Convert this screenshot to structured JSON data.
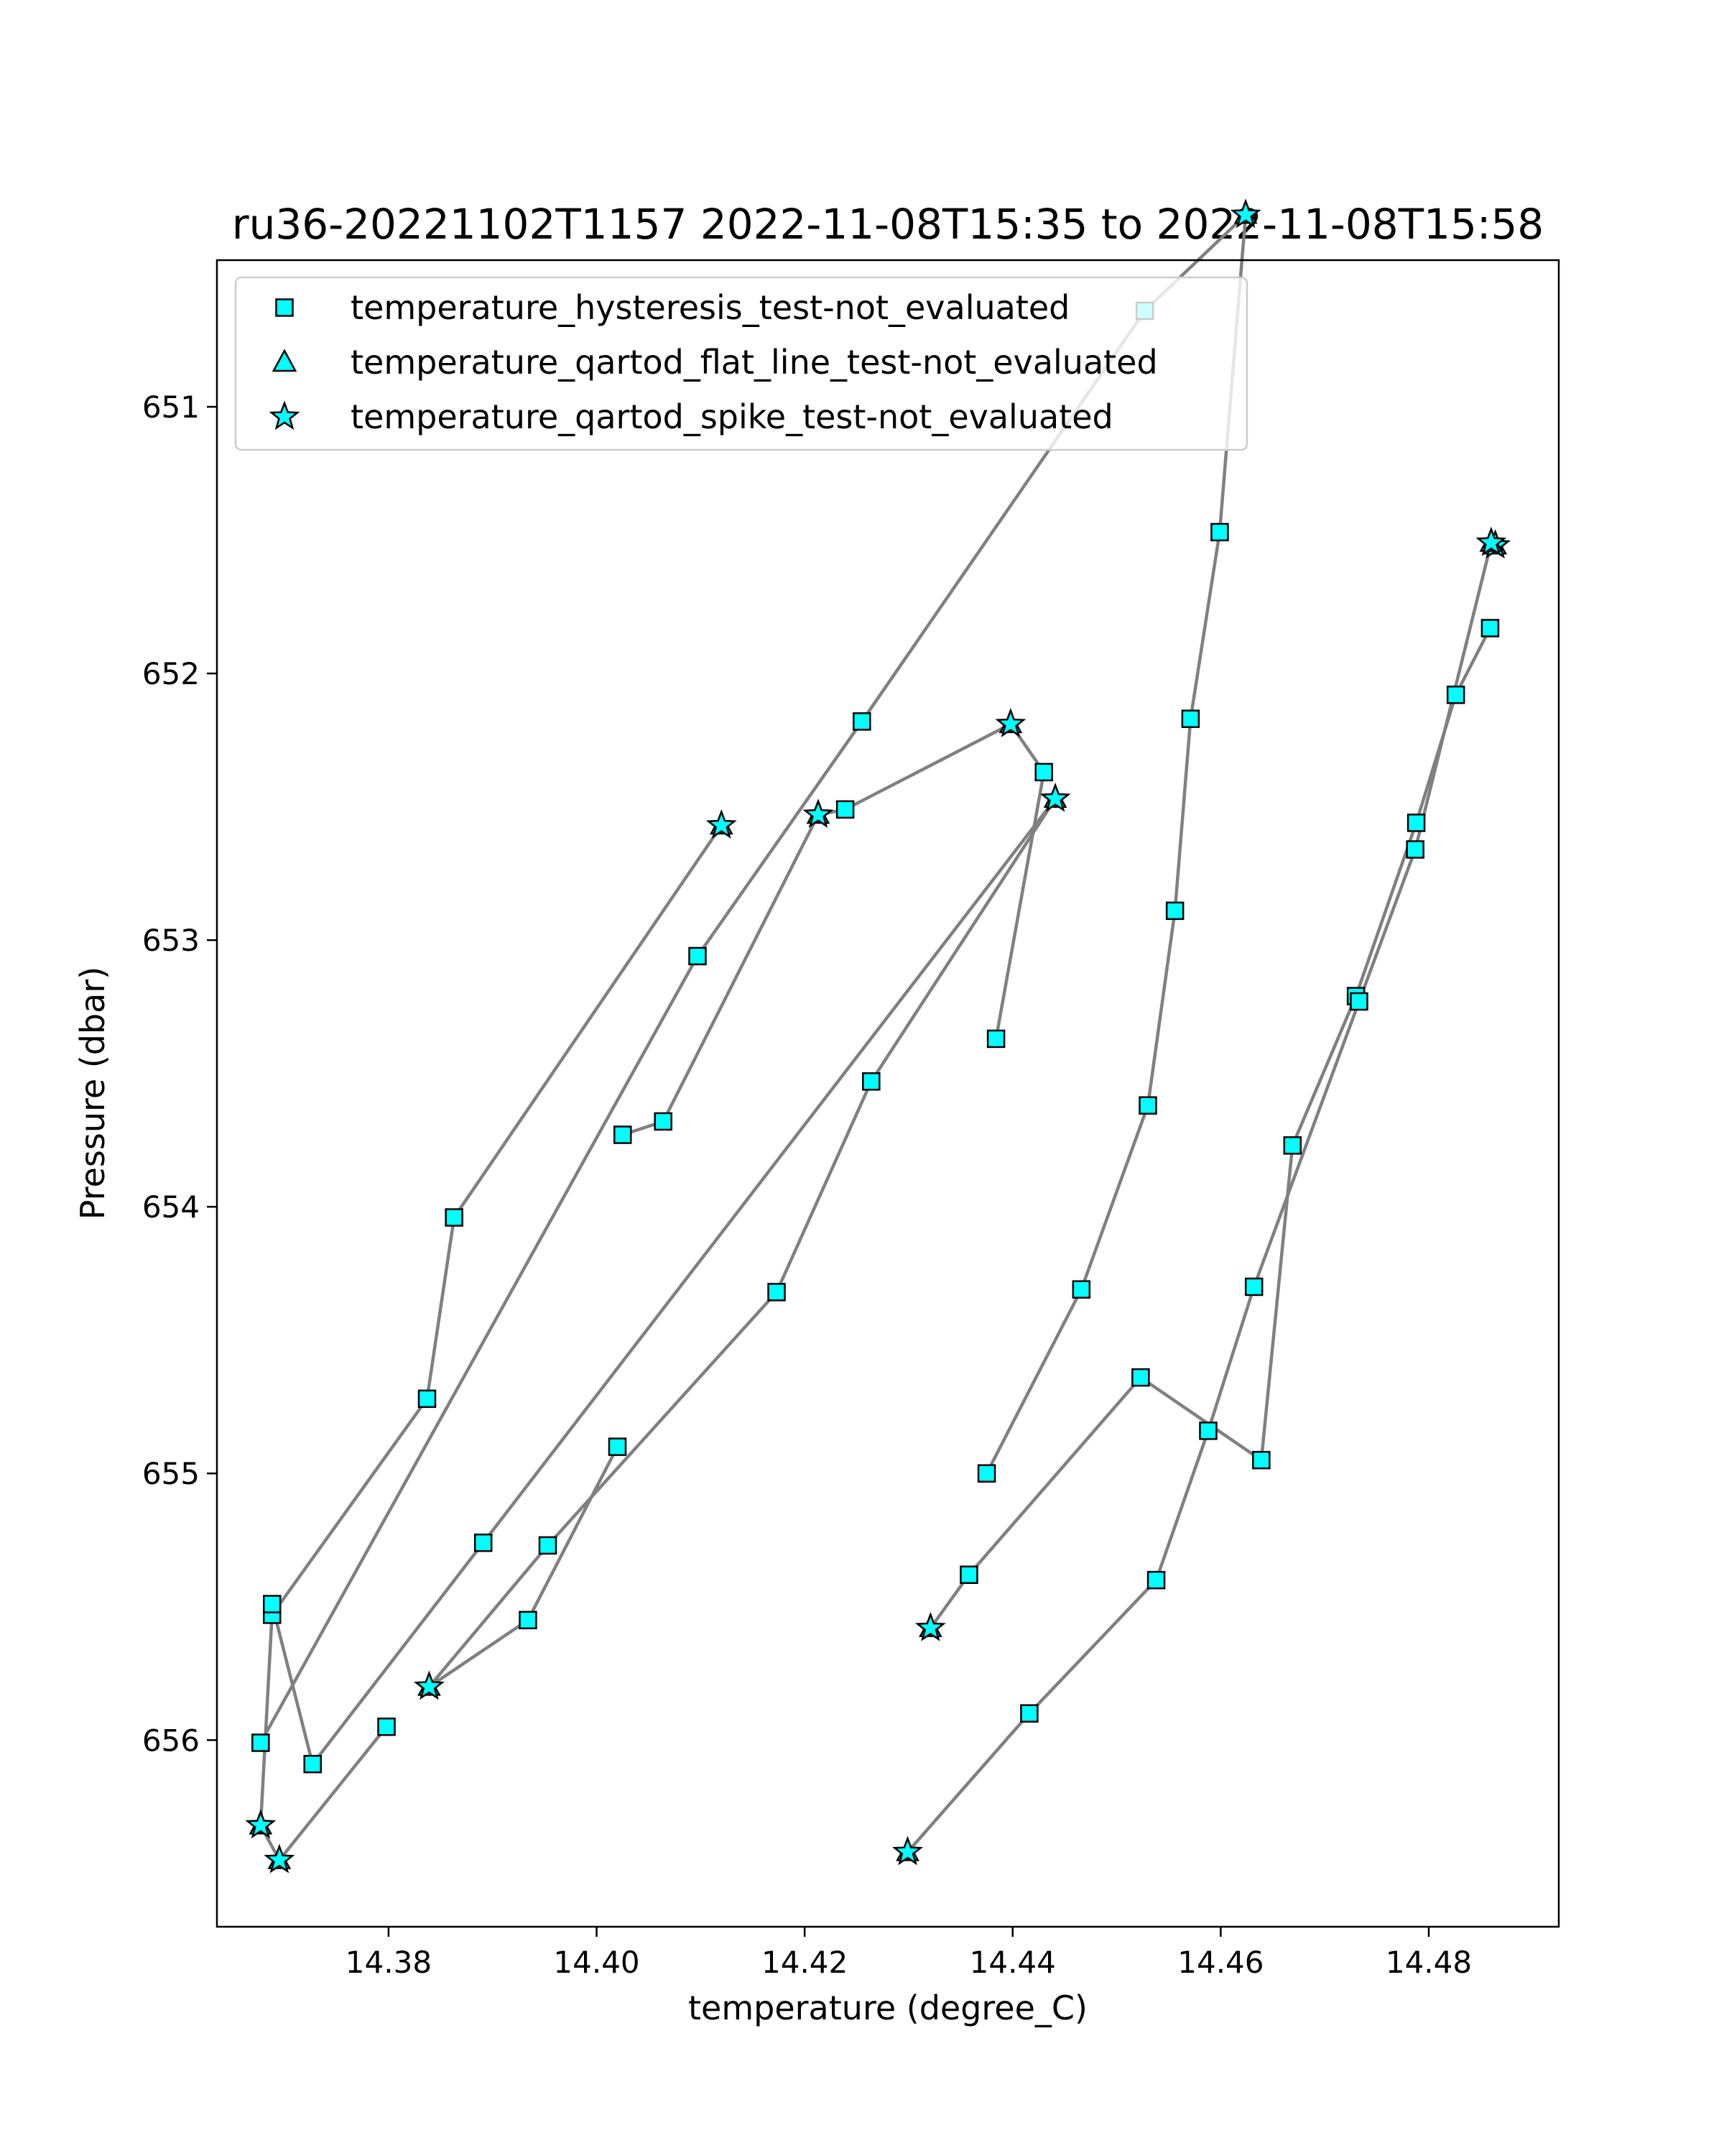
{
  "chart_data": {
    "type": "line",
    "title": "ru36-20221102T1157 2022-11-08T15:35 to 2022-11-08T15:58",
    "xlabel": "temperature (degree_C)",
    "ylabel": "Pressure (dbar)",
    "xlim": [
      14.3635,
      14.4925
    ],
    "ylim": [
      656.7,
      650.45
    ],
    "y_inverted": true,
    "grid": false,
    "legend_position": "top-left",
    "line_color": "#808080",
    "marker_color": "#00ffff",
    "marker_edge_color": "#000000",
    "xticks": [
      14.38,
      14.4,
      14.42,
      14.44,
      14.46,
      14.48
    ],
    "xtick_labels": [
      "14.38",
      "14.40",
      "14.42",
      "14.44",
      "14.46",
      "14.48"
    ],
    "yticks": [
      651,
      652,
      653,
      654,
      655,
      656
    ],
    "ytick_labels": [
      "651",
      "652",
      "653",
      "654",
      "655",
      "656"
    ],
    "legend": [
      {
        "label": "temperature_hysteresis_test-not_evaluated",
        "marker": "square"
      },
      {
        "label": "temperature_qartod_flat_line_test-not_evaluated",
        "marker": "triangle"
      },
      {
        "label": "temperature_qartod_spike_test-not_evaluated",
        "marker": "star"
      }
    ],
    "x": [
      14.412,
      14.3863,
      14.3837,
      14.3688,
      14.3677,
      14.3695,
      14.3798,
      14.4025,
      14.4064,
      14.4213,
      14.4239,
      14.4398,
      14.443,
      14.4384,
      14.402,
      14.3934,
      14.3839,
      14.3953,
      14.4173,
      14.4264,
      14.4441,
      14.3891,
      14.3727,
      14.3688,
      14.3677,
      14.4097,
      14.4255,
      14.4527,
      14.4624,
      14.4599,
      14.4571,
      14.4556,
      14.453,
      14.4466,
      14.4375,
      14.4321,
      14.4358,
      14.4523,
      14.4639,
      14.4669,
      14.473,
      14.4788,
      14.4826,
      14.4859,
      14.4864,
      14.486,
      14.4787,
      14.4733,
      14.4632,
      14.4588,
      14.4538,
      14.4416,
      14.4299
    ],
    "y": [
      652.57,
      654.04,
      654.72,
      655.53,
      656.32,
      656.45,
      655.95,
      653.73,
      653.68,
      652.53,
      652.51,
      652.19,
      652.37,
      653.37,
      654.9,
      655.55,
      655.8,
      655.27,
      654.32,
      653.53,
      652.47,
      655.26,
      656.09,
      655.49,
      656.01,
      653.06,
      652.18,
      650.64,
      650.28,
      651.47,
      652.17,
      652.89,
      653.62,
      654.31,
      655.0,
      655.58,
      655.38,
      654.64,
      654.95,
      653.77,
      653.21,
      652.56,
      652.08,
      651.83,
      651.52,
      651.51,
      652.66,
      653.23,
      654.3,
      654.84,
      655.4,
      655.9,
      656.42
    ],
    "markers": [
      "star",
      "square",
      "square",
      "square",
      "star",
      "star",
      "square",
      "square",
      "square",
      "star",
      "square",
      "star",
      "square",
      "square",
      "square",
      "square",
      "star",
      "square",
      "square",
      "square",
      "star",
      "square",
      "square",
      "square",
      "square",
      "square",
      "square",
      "square",
      "star",
      "square",
      "square",
      "square",
      "square",
      "square",
      "square",
      "star",
      "square",
      "square",
      "square",
      "square",
      "square",
      "square",
      "square",
      "square",
      "star",
      "star",
      "square",
      "square",
      "square",
      "square",
      "square",
      "square",
      "star"
    ],
    "segments": [
      [
        0,
        6
      ],
      [
        7,
        13
      ],
      [
        14,
        23
      ],
      [
        24,
        34
      ],
      [
        35,
        43
      ],
      [
        44,
        52
      ]
    ]
  }
}
